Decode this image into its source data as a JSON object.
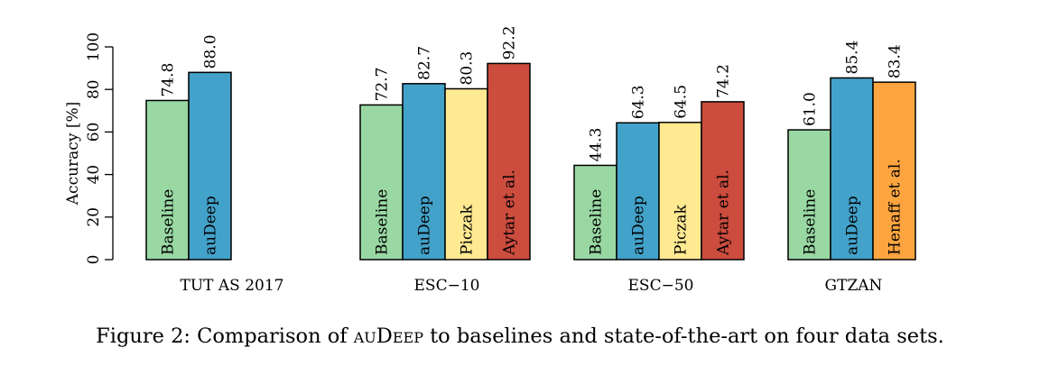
{
  "chart_data": {
    "type": "bar",
    "ylabel": "Accuracy [%]",
    "ylim": [
      0,
      100
    ],
    "yticks": [
      0,
      20,
      40,
      60,
      80,
      100
    ],
    "grid": false,
    "data_labels_rotated": true,
    "groups": [
      {
        "name": "TUT AS 2017",
        "bars": [
          {
            "label": "Baseline",
            "value": 74.8,
            "value_text": "74.8",
            "color": "#99d8a3"
          },
          {
            "label": "auDeep",
            "value": 88.0,
            "value_text": "88.0",
            "color": "#43a2ca"
          }
        ]
      },
      {
        "name": "ESC−10",
        "bars": [
          {
            "label": "Baseline",
            "value": 72.7,
            "value_text": "72.7",
            "color": "#99d8a3"
          },
          {
            "label": "auDeep",
            "value": 82.7,
            "value_text": "82.7",
            "color": "#43a2ca"
          },
          {
            "label": "Piczak",
            "value": 80.3,
            "value_text": "80.3",
            "color": "#ffe991"
          },
          {
            "label": "Aytar et al.",
            "value": 92.2,
            "value_text": "92.2",
            "color": "#cc4c3e"
          }
        ]
      },
      {
        "name": "ESC−50",
        "bars": [
          {
            "label": "Baseline",
            "value": 44.3,
            "value_text": "44.3",
            "color": "#99d8a3"
          },
          {
            "label": "auDeep",
            "value": 64.3,
            "value_text": "64.3",
            "color": "#43a2ca"
          },
          {
            "label": "Piczak",
            "value": 64.5,
            "value_text": "64.5",
            "color": "#ffe991"
          },
          {
            "label": "Aytar et al.",
            "value": 74.2,
            "value_text": "74.2",
            "color": "#cc4c3e"
          }
        ]
      },
      {
        "name": "GTZAN",
        "bars": [
          {
            "label": "Baseline",
            "value": 61.0,
            "value_text": "61.0",
            "color": "#99d8a3"
          },
          {
            "label": "auDeep",
            "value": 85.4,
            "value_text": "85.4",
            "color": "#43a2ca"
          },
          {
            "label": "Henaff et al.",
            "value": 83.4,
            "value_text": "83.4",
            "color": "#fea53f"
          }
        ]
      }
    ]
  },
  "caption": {
    "prefix": "Figure 2: Comparison of ",
    "name": "auDeep",
    "suffix": " to baselines and state-of-the-art on four data sets."
  }
}
